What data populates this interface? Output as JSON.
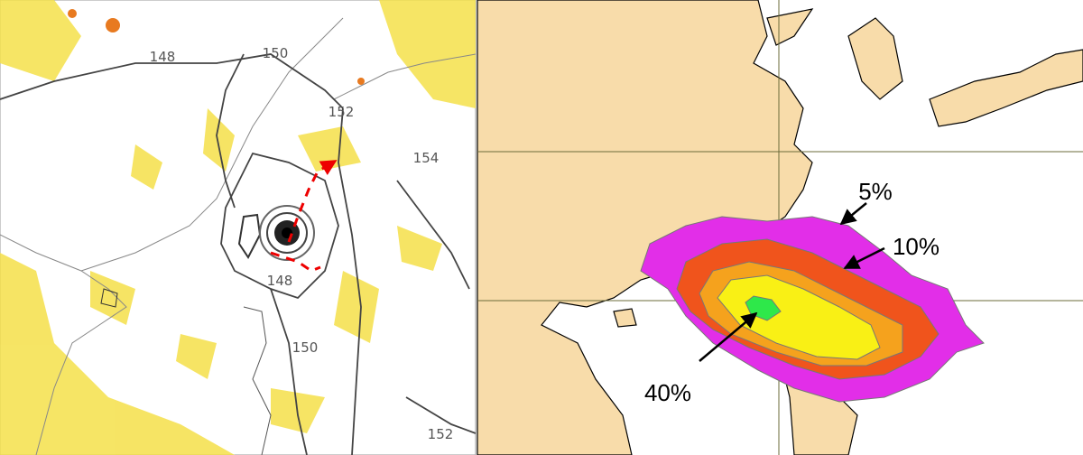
{
  "left_map": {
    "contour_labels": [
      "148",
      "150",
      "152",
      "154",
      "148",
      "150",
      "152"
    ]
  },
  "right_map": {
    "probability_labels": [
      "5%",
      "10%",
      "40%"
    ]
  }
}
